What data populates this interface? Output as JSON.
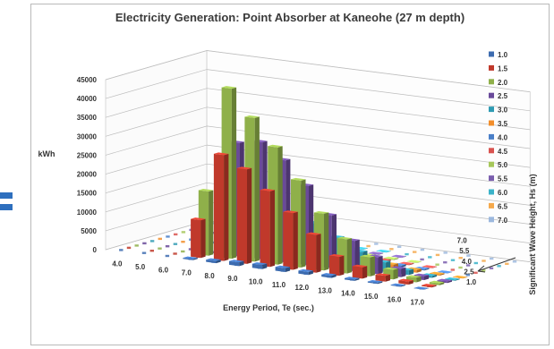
{
  "chart_data": {
    "type": "bar",
    "subtype": "3d-column",
    "title": "Electricity Generation: Point Absorber at Kaneohe (27 m depth)",
    "xlabel": "Energy Period, Te (sec.)",
    "ylabel": "kWh",
    "zlabel": "Significant Wave Height, Hs (m)",
    "x": [
      "4.0",
      "5.0",
      "6.0",
      "7.0",
      "8.0",
      "9.0",
      "10.0",
      "11.0",
      "12.0",
      "13.0",
      "14.0",
      "15.0",
      "16.0",
      "17.0"
    ],
    "z_ticks": [
      "1.0",
      "2.5",
      "4.0",
      "5.5",
      "7.0"
    ],
    "yticks": [
      0,
      5000,
      10000,
      15000,
      20000,
      25000,
      30000,
      35000,
      40000,
      45000
    ],
    "ylim": [
      0,
      45000
    ],
    "grid": true,
    "legend_position": "right",
    "series": [
      {
        "name": "1.0",
        "color": "#3d6cb0",
        "values": [
          0,
          0,
          0,
          300,
          600,
          1000,
          1100,
          1000,
          800,
          600,
          400,
          300,
          200,
          100
        ]
      },
      {
        "name": "1.5",
        "color": "#c0392b",
        "values": [
          0,
          0,
          0,
          10000,
          28000,
          25000,
          20000,
          15000,
          10000,
          5000,
          3000,
          1500,
          800,
          300
        ]
      },
      {
        "name": "2.0",
        "color": "#8fb04a",
        "values": [
          0,
          0,
          0,
          17000,
          45000,
          38000,
          31000,
          23000,
          15000,
          9000,
          5000,
          2500,
          1200,
          500
        ]
      },
      {
        "name": "2.5",
        "color": "#6a4a9a",
        "values": [
          0,
          0,
          0,
          0,
          30000,
          31000,
          27000,
          21000,
          14000,
          8000,
          4500,
          2200,
          1000,
          400
        ]
      },
      {
        "name": "3.0",
        "color": "#2f9bb3",
        "values": [
          0,
          0,
          0,
          0,
          10000,
          12000,
          12500,
          10500,
          7500,
          4500,
          2500,
          1200,
          500,
          200
        ]
      },
      {
        "name": "3.5",
        "color": "#f28e2b",
        "values": [
          0,
          0,
          0,
          0,
          5000,
          6500,
          7000,
          5500,
          4000,
          2500,
          1300,
          700,
          300,
          100
        ]
      },
      {
        "name": "4.0",
        "color": "#4a7fc8",
        "values": [
          0,
          0,
          0,
          0,
          0,
          2000,
          2500,
          2000,
          1500,
          1000,
          500,
          300,
          100,
          0
        ]
      },
      {
        "name": "4.5",
        "color": "#d9534f",
        "values": [
          0,
          0,
          0,
          0,
          0,
          800,
          1100,
          900,
          700,
          400,
          200,
          100,
          0,
          0
        ]
      },
      {
        "name": "5.0",
        "color": "#a6c75a",
        "values": [
          0,
          0,
          0,
          0,
          0,
          300,
          500,
          400,
          300,
          200,
          100,
          0,
          0,
          0
        ]
      },
      {
        "name": "5.5",
        "color": "#7b5fae",
        "values": [
          0,
          0,
          0,
          0,
          0,
          0,
          200,
          200,
          150,
          100,
          0,
          0,
          0,
          0
        ]
      },
      {
        "name": "6.0",
        "color": "#3bb3c9",
        "values": [
          0,
          0,
          0,
          0,
          0,
          0,
          0,
          100,
          100,
          0,
          0,
          0,
          0,
          0
        ]
      },
      {
        "name": "6.5",
        "color": "#f5a94c",
        "values": [
          0,
          0,
          0,
          0,
          0,
          0,
          0,
          0,
          0,
          0,
          0,
          0,
          0,
          0
        ]
      },
      {
        "name": "7.0",
        "color": "#9cb8de",
        "values": [
          0,
          0,
          0,
          0,
          0,
          0,
          0,
          0,
          0,
          0,
          0,
          0,
          0,
          0
        ]
      }
    ]
  }
}
